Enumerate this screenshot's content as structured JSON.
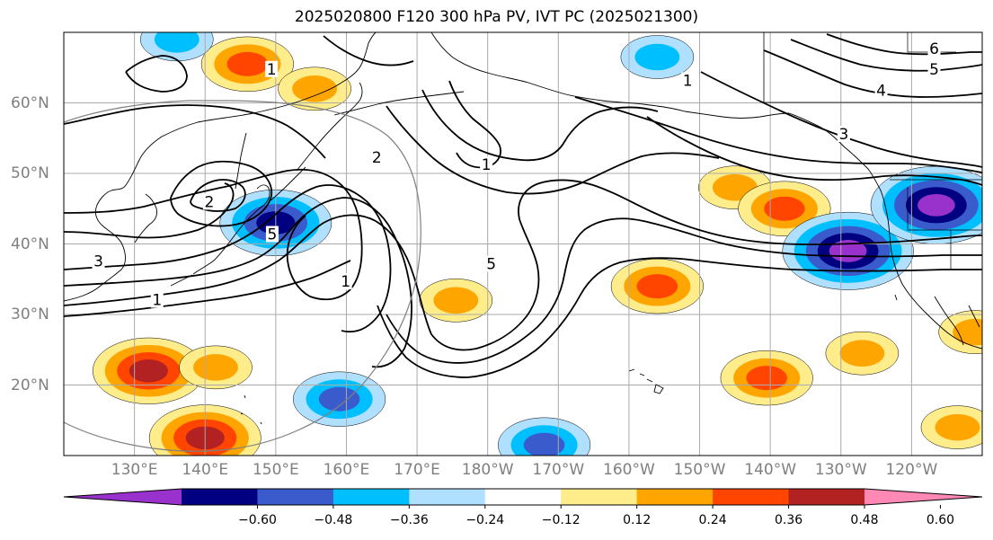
{
  "title": "2025020800 F120 300 hPa PV, IVT PC (2025021300)",
  "map": {
    "projection": "PlateCarree",
    "lon_range": [
      120,
      250
    ],
    "lat_range": [
      10,
      70
    ],
    "lon_ticks": [
      {
        "lon": 130,
        "label": "130°E"
      },
      {
        "lon": 140,
        "label": "140°E"
      },
      {
        "lon": 150,
        "label": "150°E"
      },
      {
        "lon": 160,
        "label": "160°E"
      },
      {
        "lon": 170,
        "label": "170°E"
      },
      {
        "lon": 180,
        "label": "180°W"
      },
      {
        "lon": 190,
        "label": "170°W"
      },
      {
        "lon": 200,
        "label": "160°W"
      },
      {
        "lon": 210,
        "label": "150°W"
      },
      {
        "lon": 220,
        "label": "140°W"
      },
      {
        "lon": 230,
        "label": "130°W"
      },
      {
        "lon": 240,
        "label": "120°W"
      }
    ],
    "lat_ticks": [
      {
        "lat": 20,
        "label": "20°N"
      },
      {
        "lat": 30,
        "label": "30°N"
      },
      {
        "lat": 40,
        "label": "40°N"
      },
      {
        "lat": 50,
        "label": "50°N"
      },
      {
        "lat": 60,
        "label": "60°N"
      }
    ],
    "grid": true,
    "grid_color": "#aaaaaa",
    "contour_labels": [
      {
        "text": "1",
        "lon": 149.4,
        "lat": 64.8
      },
      {
        "text": "2",
        "lon": 164.3,
        "lat": 52.3
      },
      {
        "text": "2",
        "lon": 140.6,
        "lat": 46.0
      },
      {
        "text": "5",
        "lon": 149.5,
        "lat": 41.4
      },
      {
        "text": "1",
        "lon": 179.8,
        "lat": 51.3
      },
      {
        "text": "1",
        "lon": 208.3,
        "lat": 63.2
      },
      {
        "text": "5",
        "lon": 180.5,
        "lat": 37.2
      },
      {
        "text": "1",
        "lon": 159.9,
        "lat": 34.7
      },
      {
        "text": "6",
        "lon": 243.2,
        "lat": 67.7
      },
      {
        "text": "5",
        "lon": 243.2,
        "lat": 64.8
      },
      {
        "text": "4",
        "lon": 235.7,
        "lat": 61.8
      },
      {
        "text": "3",
        "lon": 230.4,
        "lat": 55.6
      },
      {
        "text": "3",
        "lon": 124.9,
        "lat": 37.6
      },
      {
        "text": "1",
        "lon": 133.2,
        "lat": 32.1
      }
    ]
  },
  "colorbar": {
    "boundaries": [
      -0.72,
      -0.6,
      -0.48,
      -0.36,
      -0.24,
      -0.12,
      0.12,
      0.24,
      0.36,
      0.48,
      0.6,
      0.72
    ],
    "colors": [
      "#9932cc",
      "#000080",
      "#3a5bcc",
      "#00bfff",
      "#b0e0ff",
      "#ffffff",
      "#ffec8b",
      "#ffa500",
      "#ff4500",
      "#b22222",
      "#ff89b4"
    ],
    "extend": "both",
    "tick_values": [
      -0.6,
      -0.48,
      -0.36,
      -0.24,
      -0.12,
      0.12,
      0.24,
      0.36,
      0.48,
      0.6
    ],
    "tick_labels": [
      "−0.60",
      "−0.48",
      "−0.36",
      "−0.24",
      "−0.12",
      "0.12",
      "0.24",
      "0.36",
      "0.48",
      "0.60"
    ]
  },
  "ivt_anomalies": [
    {
      "sign": "positive",
      "lon": 146,
      "lat": 65.5,
      "level": 0.36
    },
    {
      "sign": "positive",
      "lon": 155.5,
      "lat": 62,
      "level": 0.24
    },
    {
      "sign": "positive",
      "lon": 132,
      "lat": 22,
      "level": 0.48
    },
    {
      "sign": "positive",
      "lon": 140,
      "lat": 12.5,
      "level": 0.48
    },
    {
      "sign": "positive",
      "lon": 141.5,
      "lat": 22.5,
      "level": 0.24
    },
    {
      "sign": "positive",
      "lon": 175.5,
      "lat": 32,
      "level": 0.24
    },
    {
      "sign": "positive",
      "lon": 215,
      "lat": 48,
      "level": 0.24
    },
    {
      "sign": "positive",
      "lon": 222,
      "lat": 45,
      "level": 0.36
    },
    {
      "sign": "positive",
      "lon": 204,
      "lat": 34,
      "level": 0.36
    },
    {
      "sign": "positive",
      "lon": 219.5,
      "lat": 21,
      "level": 0.36
    },
    {
      "sign": "positive",
      "lon": 246.5,
      "lat": 14,
      "level": 0.24
    },
    {
      "sign": "positive",
      "lon": 249,
      "lat": 27.5,
      "level": 0.24
    },
    {
      "sign": "positive",
      "lon": 233,
      "lat": 24.5,
      "level": 0.24
    },
    {
      "sign": "negative",
      "lon": 150,
      "lat": 43,
      "level": -0.48
    },
    {
      "sign": "negative",
      "lon": 231,
      "lat": 39,
      "level": -0.6
    },
    {
      "sign": "negative",
      "lon": 243.5,
      "lat": 45.5,
      "level": -0.6
    },
    {
      "sign": "negative",
      "lon": 159,
      "lat": 18,
      "level": -0.36
    },
    {
      "sign": "negative",
      "lon": 188,
      "lat": 11.5,
      "level": -0.36
    },
    {
      "sign": "negative",
      "lon": 204,
      "lat": 66.5,
      "level": -0.24
    },
    {
      "sign": "negative",
      "lon": 136,
      "lat": 69,
      "level": -0.24
    }
  ]
}
